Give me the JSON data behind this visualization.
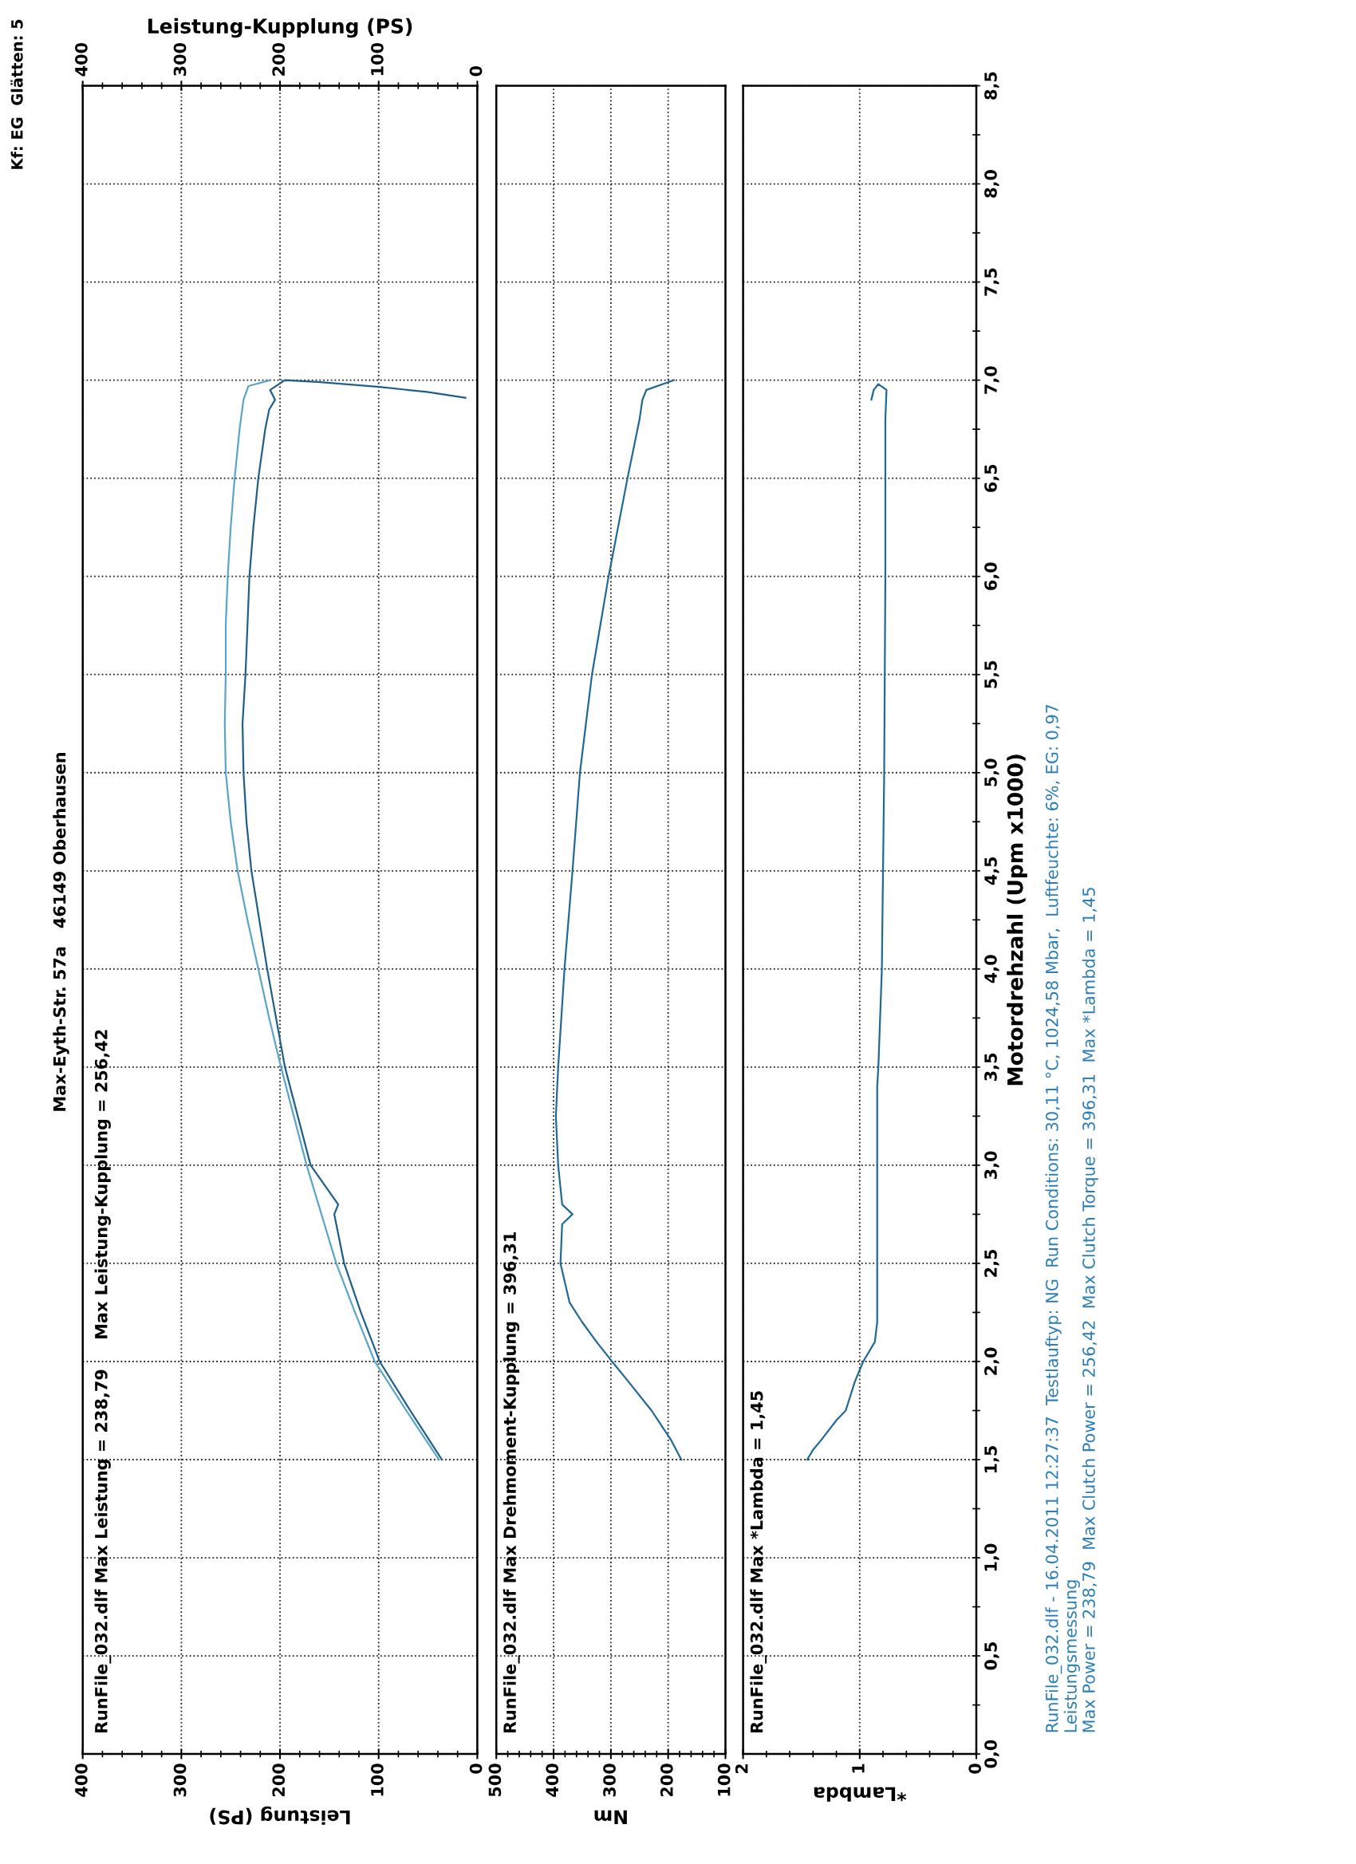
{
  "chart_data": [
    {
      "type": "line",
      "xlabel": "Leistung (PS)",
      "x2label": "Leistung-Kupplung (PS)",
      "grid": true,
      "tick_labels": "x",
      "annotations": [
        "RunFile_032.dlf Max Leistung = 238,79     Max Leistung-Kupplung = 256,42",
        "Max-Eyth-Str. 57a   46149 Oberhausen",
        "Kf: EG  Glätten: 5"
      ],
      "ylim": [
        0,
        8.5
      ],
      "yticks": [
        0,
        0.5,
        1,
        1.5,
        2,
        2.5,
        3,
        3.5,
        4,
        4.5,
        5,
        5.5,
        6,
        6.5,
        7,
        7.5,
        8,
        8.5
      ],
      "xlim": [
        400,
        0
      ],
      "xticks": [
        0,
        100,
        200,
        300,
        400
      ],
      "x2lim": [
        400,
        0
      ],
      "x2ticks": [
        0,
        100,
        200,
        300,
        400
      ],
      "series": [
        {
          "color": "#1f5f8b",
          "values": [
            1.5,
            1.75,
            2.0,
            2.25,
            2.5,
            2.7,
            2.75,
            2.8,
            3.0,
            3.25,
            3.5,
            3.75,
            4.0,
            4.25,
            4.5,
            4.75,
            5.0,
            5.25,
            5.5,
            5.75,
            6.0,
            6.25,
            6.5,
            6.75,
            6.85,
            6.9,
            6.95,
            7.0,
            6.99,
            6.965,
            6.94,
            6.91
          ],
          "x": [
            36,
            68,
            99,
            118,
            135,
            143,
            145,
            141,
            169,
            182,
            195,
            204,
            213,
            221,
            229,
            234,
            237,
            238,
            235,
            233,
            231,
            227,
            222,
            215,
            211,
            205,
            210,
            195,
            159,
            99,
            51,
            12
          ]
        },
        {
          "color": "#5aa6c8",
          "values": [
            1.5,
            1.75,
            2.0,
            2.25,
            2.5,
            2.75,
            3.0,
            3.25,
            3.5,
            3.75,
            4.0,
            4.25,
            4.5,
            4.75,
            5.0,
            5.25,
            5.5,
            5.75,
            6.0,
            6.25,
            6.5,
            6.75,
            6.9,
            6.97,
            7.0
          ],
          "x": [
            39,
            72,
            104,
            124,
            143,
            158,
            173,
            186,
            199,
            211,
            222,
            233,
            243,
            250,
            255,
            256,
            255,
            255,
            253,
            250,
            246,
            241,
            237,
            232,
            210
          ]
        }
      ]
    },
    {
      "type": "line",
      "xlabel": "Nm",
      "grid": true,
      "tick_labels": "x",
      "annotations": [
        "RunFile_032.dlf Max Drehmoment-Kupplung = 396,31"
      ],
      "ylim": [
        0,
        8.5
      ],
      "yticks": [
        0,
        0.5,
        1,
        1.5,
        2,
        2.5,
        3,
        3.5,
        4,
        4.5,
        5,
        5.5,
        6,
        6.5,
        7,
        7.5,
        8,
        8.5
      ],
      "xlim": [
        500,
        100
      ],
      "xticks": [
        100,
        200,
        300,
        400,
        500
      ],
      "series": [
        {
          "color": "#1f6a96",
          "values": [
            1.5,
            1.6,
            1.75,
            1.9,
            2.0,
            2.1,
            2.2,
            2.3,
            2.5,
            2.7,
            2.75,
            2.8,
            3.0,
            3.25,
            3.5,
            4.0,
            4.5,
            5.0,
            5.5,
            6.0,
            6.5,
            6.8,
            6.9,
            6.95,
            7.0
          ],
          "x": [
            177,
            195,
            229,
            270,
            298,
            325,
            350,
            372,
            388,
            385,
            367,
            385,
            392,
            396,
            392,
            381,
            367,
            354,
            333,
            304,
            271,
            250,
            245,
            238,
            190
          ]
        }
      ]
    },
    {
      "type": "line",
      "xlabel": "*Lambda",
      "ylabel": "Motordrehzahl (Upm x1000)",
      "grid": true,
      "annotations": [
        "RunFile_032.dlf Max *Lambda = 1,45",
        "RunFile_032.dlf - 16.04.2011 12:27:37  Testlauftyp: NG  Run Conditions: 30,11 °C, 1024,58 Mbar,  Luftfeuchte: 6%, EG: 0,97",
        "Leistungsmessung",
        "Max Power = 238,79  Max Clutch Power = 256,42  Max Clutch Torque = 396,31  Max *Lambda = 1,45"
      ],
      "ylim": [
        0,
        8.5
      ],
      "yticks": [
        {
          "value": 0,
          "label": "0,0"
        },
        {
          "value": 0.5,
          "label": "0,5"
        },
        {
          "value": 1,
          "label": "1,0"
        },
        {
          "value": 1.5,
          "label": "1,5"
        },
        {
          "value": 2,
          "label": "2,0"
        },
        {
          "value": 2.5,
          "label": "2,5"
        },
        {
          "value": 3,
          "label": "3,0"
        },
        {
          "value": 3.5,
          "label": "3,5"
        },
        {
          "value": 4,
          "label": "4,0"
        },
        {
          "value": 4.5,
          "label": "4,5"
        },
        {
          "value": 5,
          "label": "5,0"
        },
        {
          "value": 5.5,
          "label": "5,5"
        },
        {
          "value": 6,
          "label": "6,0"
        },
        {
          "value": 6.5,
          "label": "6,5"
        },
        {
          "value": 7,
          "label": "7,0"
        },
        {
          "value": 7.5,
          "label": "7,5"
        },
        {
          "value": 8,
          "label": "8,0"
        },
        {
          "value": 8.5,
          "label": "8,5"
        }
      ],
      "xlim": [
        2,
        0
      ],
      "xticks": [
        0,
        1,
        2
      ],
      "series": [
        {
          "color": "#1f6a96",
          "values": [
            1.5,
            1.55,
            1.6,
            1.7,
            1.75,
            1.9,
            2.0,
            2.1,
            2.2,
            2.5,
            3.0,
            3.4,
            3.5,
            4.0,
            5.0,
            6.0,
            6.8,
            6.95,
            6.98,
            6.95,
            6.9
          ],
          "x": [
            1.45,
            1.4,
            1.33,
            1.2,
            1.12,
            1.04,
            0.97,
            0.87,
            0.85,
            0.85,
            0.85,
            0.85,
            0.84,
            0.81,
            0.79,
            0.78,
            0.78,
            0.77,
            0.84,
            0.88,
            0.9
          ]
        }
      ]
    }
  ]
}
